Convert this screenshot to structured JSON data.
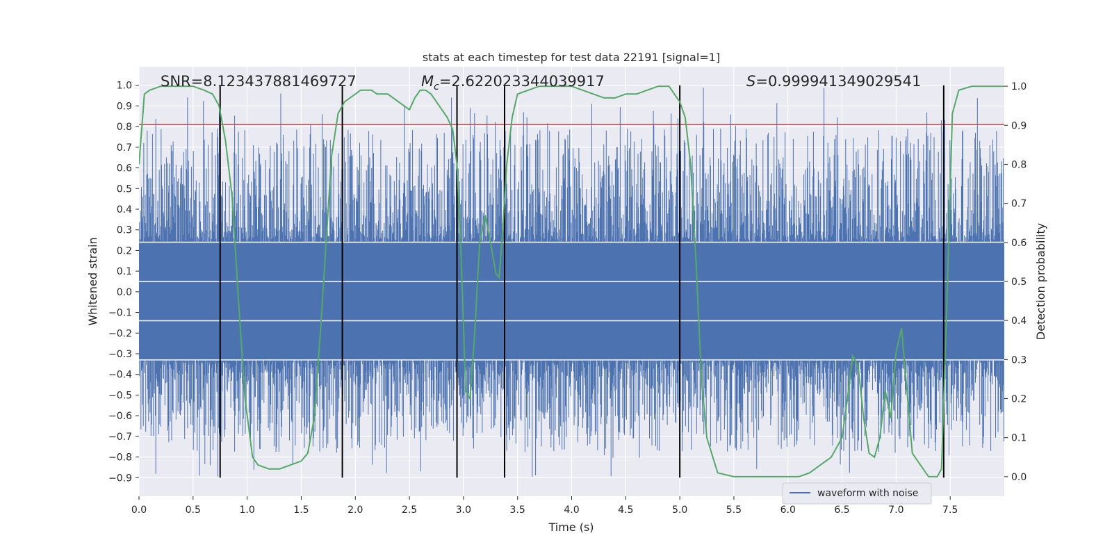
{
  "chart_data": {
    "type": "line",
    "title": "stats at each timestep for test data 22191 [signal=1]",
    "xlabel": "Time (s)",
    "ylabel": "Whitened strain",
    "ylabel_right": "Detection probability",
    "xlim": [
      0.0,
      8.0
    ],
    "ylim": [
      -0.99,
      1.09
    ],
    "ylim_right": [
      -0.05,
      1.05
    ],
    "x_ticks": [
      0.0,
      0.5,
      1.0,
      1.5,
      2.0,
      2.5,
      3.0,
      3.5,
      4.0,
      4.5,
      5.0,
      5.5,
      6.0,
      6.5,
      7.0,
      7.5
    ],
    "y_ticks": [
      -0.9,
      -0.8,
      -0.7,
      -0.6,
      -0.5,
      -0.4,
      -0.3,
      -0.2,
      -0.1,
      0.0,
      0.1,
      0.2,
      0.3,
      0.4,
      0.5,
      0.6,
      0.7,
      0.8,
      0.9,
      1.0
    ],
    "y_ticks_right": [
      0.0,
      0.1,
      0.2,
      0.3,
      0.4,
      0.5,
      0.6,
      0.7,
      0.8,
      0.9,
      1.0
    ],
    "grid": true,
    "legend_position": "lower-right",
    "annotations": {
      "snr": "SNR=8.123437881469727",
      "mc": "=2.622023344039917",
      "mc_symbol": "M",
      "mc_subscript": "c",
      "s": "=0.999941349029541",
      "s_symbol": "S"
    },
    "series": [
      {
        "name": "waveform with noise",
        "color": "#4c72b0",
        "axis": "left",
        "kind": "noise-waveform",
        "range": [
          -0.9,
          1.0
        ]
      },
      {
        "color": "#55a868",
        "axis": "right",
        "x": [
          0.0,
          0.05,
          0.1,
          0.2,
          0.3,
          0.4,
          0.5,
          0.6,
          0.68,
          0.74,
          0.8,
          0.86,
          0.92,
          0.98,
          1.05,
          1.1,
          1.2,
          1.3,
          1.4,
          1.5,
          1.56,
          1.62,
          1.68,
          1.73,
          1.78,
          1.84,
          1.9,
          1.95,
          2.0,
          2.05,
          2.1,
          2.15,
          2.2,
          2.25,
          2.3,
          2.35,
          2.4,
          2.45,
          2.5,
          2.55,
          2.6,
          2.65,
          2.7,
          2.75,
          2.8,
          2.85,
          2.9,
          2.94,
          2.98,
          3.02,
          3.06,
          3.1,
          3.15,
          3.2,
          3.25,
          3.3,
          3.33,
          3.36,
          3.4,
          3.45,
          3.5,
          3.6,
          3.7,
          3.8,
          3.9,
          4.0,
          4.1,
          4.2,
          4.3,
          4.4,
          4.5,
          4.6,
          4.7,
          4.8,
          4.9,
          4.95,
          5.0,
          5.05,
          5.1,
          5.15,
          5.2,
          5.25,
          5.35,
          5.5,
          5.7,
          5.9,
          6.1,
          6.2,
          6.3,
          6.4,
          6.5,
          6.55,
          6.6,
          6.65,
          6.7,
          6.75,
          6.8,
          6.85,
          6.9,
          6.95,
          7.0,
          7.05,
          7.15,
          7.3,
          7.38,
          7.42,
          7.47,
          7.52,
          7.58,
          7.7,
          8.0
        ],
        "values": [
          0.8,
          0.98,
          0.99,
          1.0,
          1.0,
          1.0,
          1.0,
          0.99,
          0.98,
          0.95,
          0.86,
          0.72,
          0.45,
          0.2,
          0.05,
          0.03,
          0.02,
          0.02,
          0.03,
          0.04,
          0.06,
          0.15,
          0.38,
          0.6,
          0.82,
          0.93,
          0.96,
          0.97,
          0.98,
          0.99,
          0.99,
          0.99,
          0.98,
          0.98,
          0.98,
          0.97,
          0.96,
          0.95,
          0.94,
          0.97,
          0.99,
          0.99,
          0.98,
          0.96,
          0.94,
          0.92,
          0.89,
          0.8,
          0.55,
          0.22,
          0.2,
          0.35,
          0.6,
          0.67,
          0.6,
          0.52,
          0.51,
          0.62,
          0.8,
          0.92,
          0.98,
          0.99,
          1.0,
          1.0,
          1.0,
          1.0,
          0.99,
          0.98,
          0.97,
          0.97,
          0.98,
          0.98,
          0.99,
          1.0,
          1.0,
          0.98,
          0.96,
          0.92,
          0.8,
          0.55,
          0.25,
          0.1,
          0.01,
          0.0,
          0.0,
          0.0,
          0.0,
          0.01,
          0.03,
          0.05,
          0.1,
          0.2,
          0.31,
          0.28,
          0.15,
          0.06,
          0.05,
          0.1,
          0.22,
          0.15,
          0.32,
          0.38,
          0.06,
          0.0,
          0.0,
          0.02,
          0.45,
          0.93,
          0.99,
          1.0,
          1.0
        ]
      },
      {
        "color": "#c44e52",
        "axis": "left",
        "kind": "threshold",
        "value": 0.81
      },
      {
        "color": "#000000",
        "axis": "left",
        "kind": "vertical-markers",
        "x": [
          0.75,
          1.88,
          2.94,
          3.38,
          5.0,
          7.44
        ],
        "range": [
          -0.9,
          1.0
        ]
      }
    ]
  }
}
